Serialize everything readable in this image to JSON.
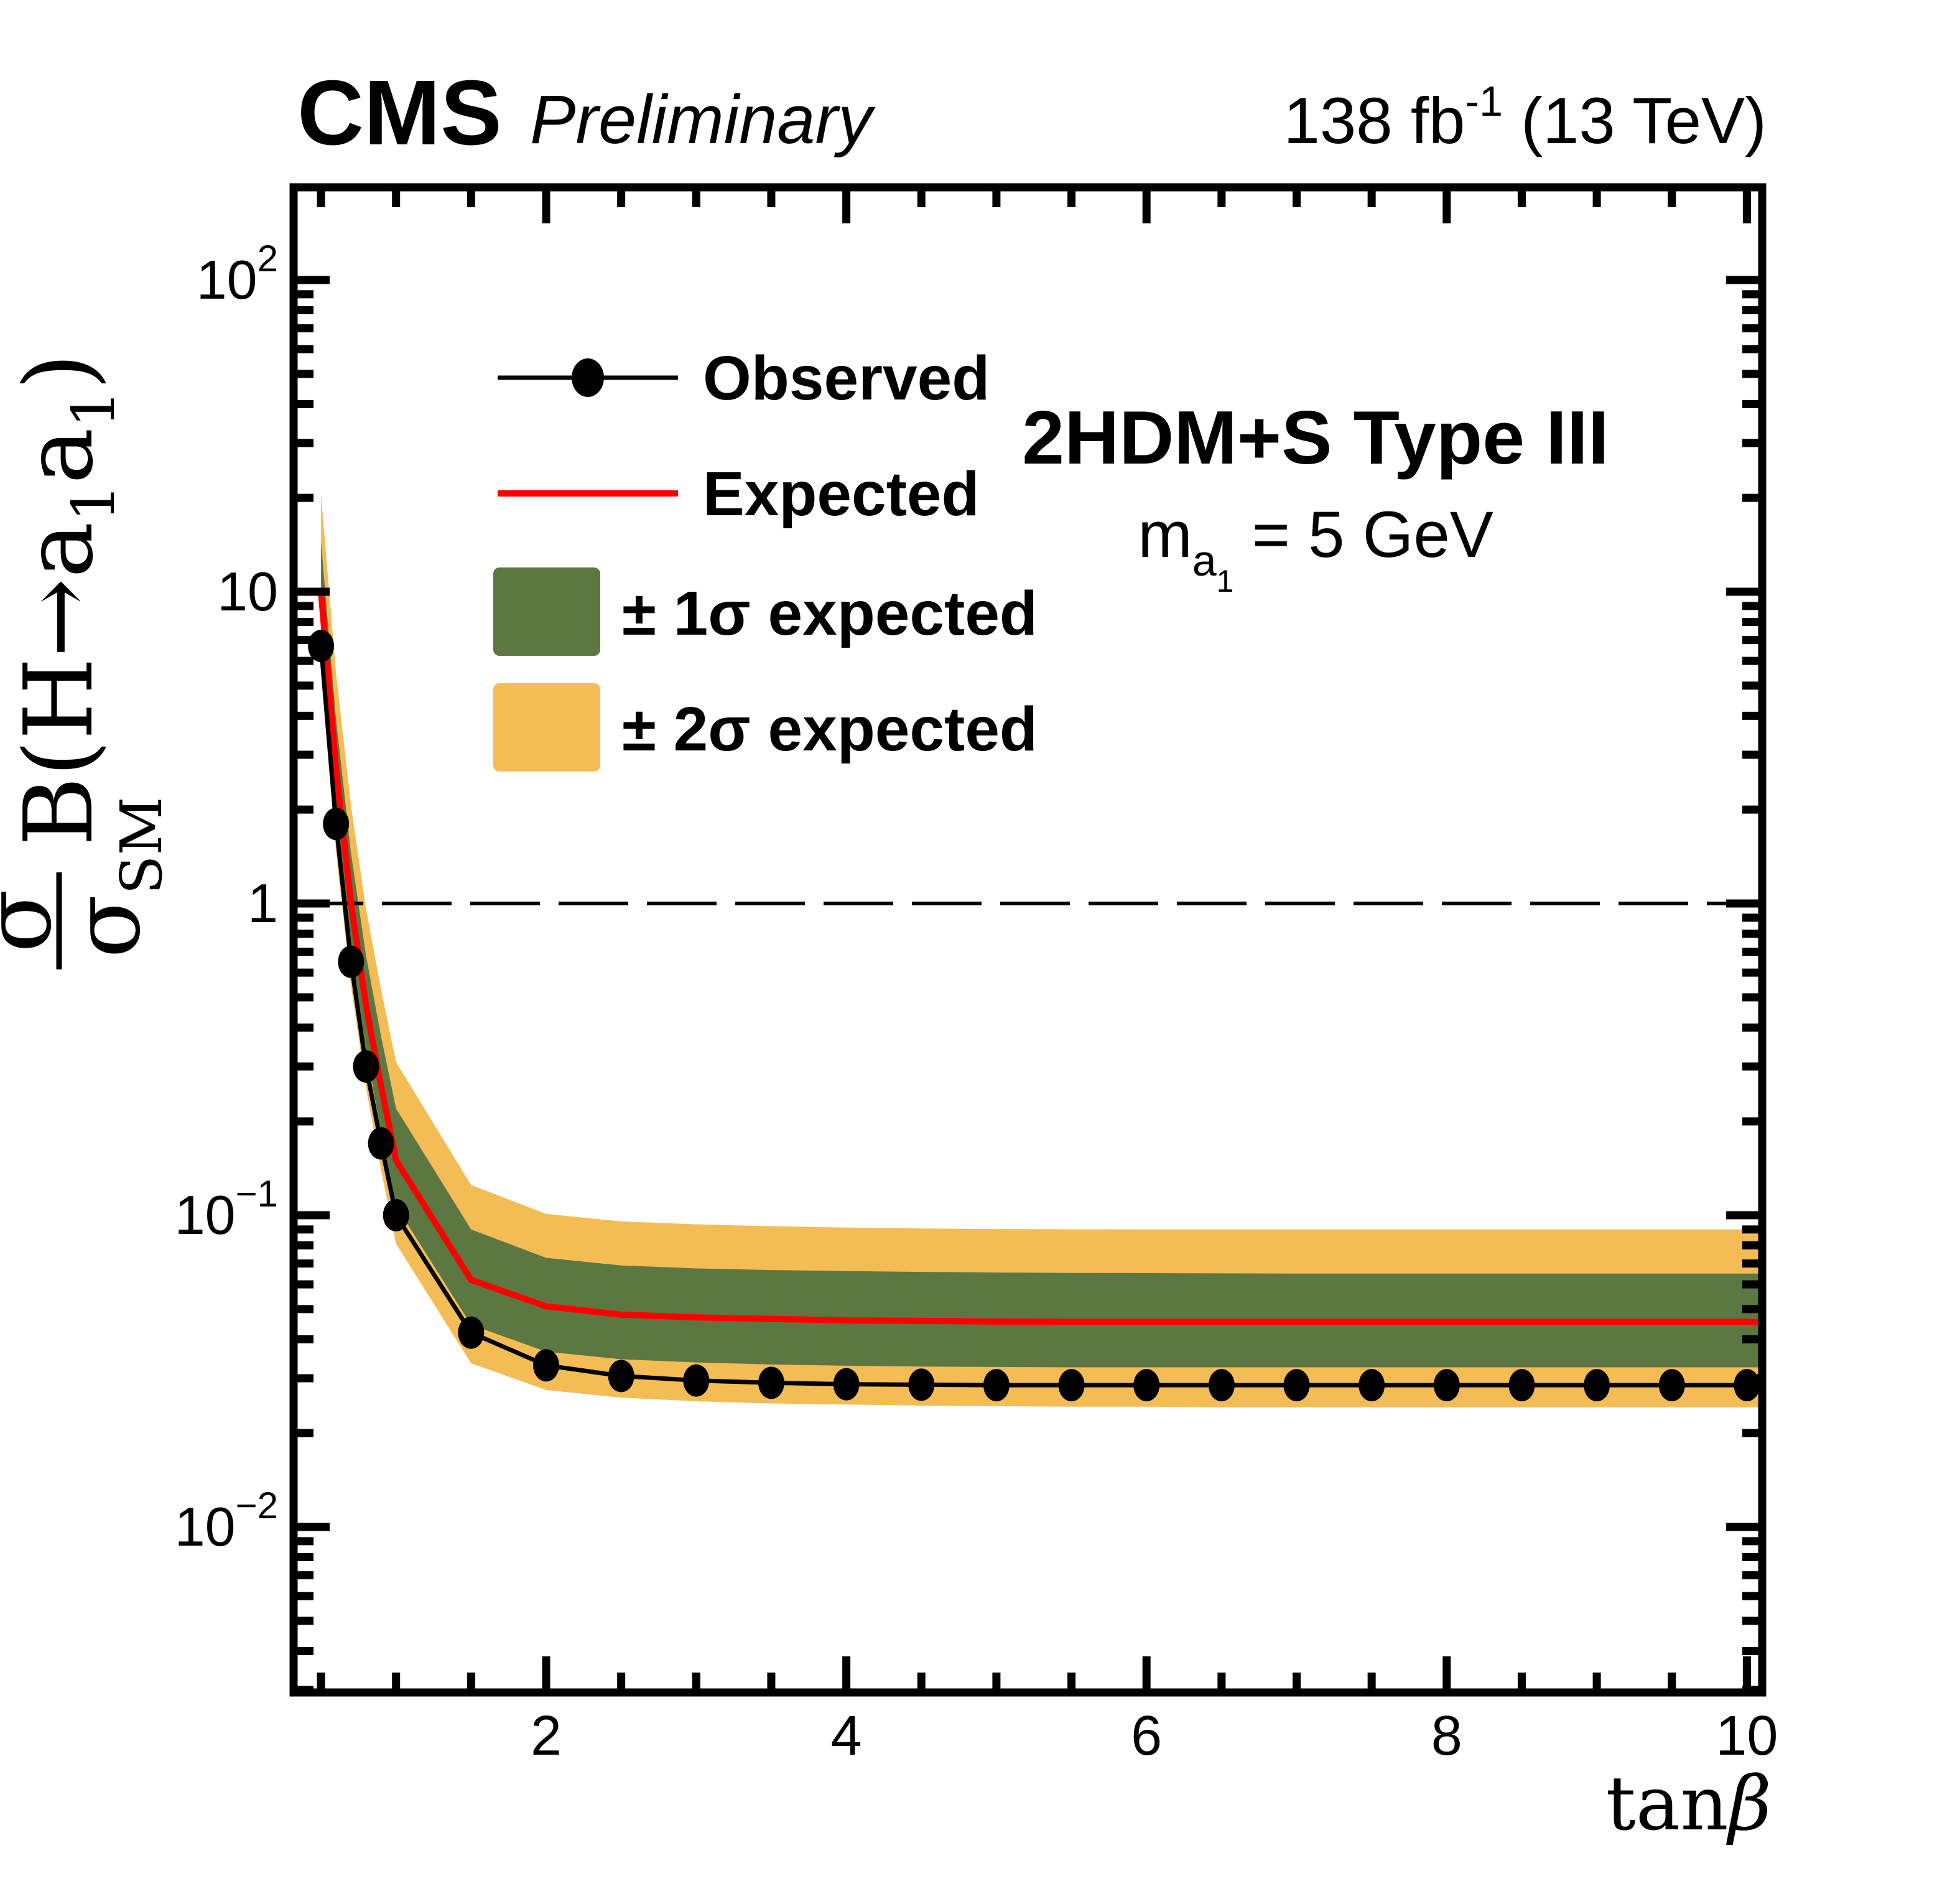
{
  "header": {
    "experiment": "CMS",
    "status": "Preliminary",
    "lumi_main": "138 fb",
    "lumi_sup": "-1",
    "lumi_rest": " (13 TeV)"
  },
  "legend": {
    "observed": "Observed",
    "expected": "Expected",
    "band1": "± 1σ expected",
    "band2": "± 2σ expected"
  },
  "annotation": {
    "model": "2HDM+S Type III",
    "mass_m": "m",
    "mass_sub": "a",
    "mass_subsub": "1",
    "mass_rest": " = 5 GeV"
  },
  "y_axis_title": {
    "num": "σ",
    "den": "σ",
    "den_sub": "SM",
    "body1": "B(H",
    "arrow": "→",
    "a1": "a",
    "s1": "1",
    "a2": "a",
    "s2": "1",
    "close": ")"
  },
  "x_axis_title": {
    "tan": "tan",
    "beta": "β"
  },
  "chart_data": {
    "type": "line",
    "title": "Upper limits on signal strength vs tanβ, 2HDM+S Type III, m_a1 = 5 GeV",
    "xlabel": "tanβ",
    "ylabel": "σ/σ_SM B(H→a1a1)",
    "xlim": [
      0.32,
      10.1
    ],
    "ylim": [
      0.0029,
      198
    ],
    "yscale": "log",
    "grid": false,
    "legend_position": "upper-left-inside",
    "unity_line": 1,
    "x_ticks": [
      "2",
      "4",
      "6",
      "8",
      "10"
    ],
    "x_tick_values": [
      2,
      4,
      6,
      8,
      10
    ],
    "x_minor_step": 0.5,
    "y_ticks": [
      {
        "v": 100,
        "base": "10",
        "exp": "2"
      },
      {
        "v": 10,
        "base": "10",
        "exp": ""
      },
      {
        "v": 1,
        "base": "1",
        "exp": ""
      },
      {
        "v": 0.1,
        "base": "10",
        "exp": "−1"
      },
      {
        "v": 0.01,
        "base": "10",
        "exp": "−2"
      }
    ],
    "x": [
      0.5,
      0.6,
      0.7,
      0.8,
      0.9,
      1.0,
      1.5,
      2.0,
      2.5,
      3.0,
      3.5,
      4.0,
      4.5,
      5.0,
      5.5,
      6.0,
      6.5,
      7.0,
      7.5,
      8.0,
      8.5,
      9.0,
      9.5,
      10.0
    ],
    "series": [
      {
        "name": "Observed",
        "style": "black line, filled circle markers",
        "values": [
          6.7,
          1.8,
          0.65,
          0.3,
          0.17,
          0.1,
          0.042,
          0.033,
          0.0305,
          0.0295,
          0.029,
          0.0287,
          0.0286,
          0.0285,
          0.0285,
          0.0285,
          0.0285,
          0.0285,
          0.0285,
          0.0285,
          0.0285,
          0.0285,
          0.0285,
          0.0285
        ]
      },
      {
        "name": "Expected",
        "style": "red line",
        "values": [
          10.0,
          2.7,
          1.0,
          0.47,
          0.26,
          0.15,
          0.062,
          0.051,
          0.048,
          0.047,
          0.0465,
          0.046,
          0.0458,
          0.0456,
          0.0455,
          0.0455,
          0.0455,
          0.0455,
          0.0455,
          0.0455,
          0.0455,
          0.0455,
          0.0455,
          0.0455
        ]
      },
      {
        "name": "+1σ expected (upper)",
        "style": "green band upper edge",
        "values": [
          14.5,
          3.9,
          1.45,
          0.68,
          0.375,
          0.22,
          0.09,
          0.073,
          0.069,
          0.0675,
          0.0667,
          0.0662,
          0.0658,
          0.0655,
          0.0653,
          0.0652,
          0.0651,
          0.065,
          0.065,
          0.065,
          0.065,
          0.065,
          0.065,
          0.065
        ]
      },
      {
        "name": "-1σ expected (lower)",
        "style": "green band lower edge",
        "values": [
          7.3,
          1.95,
          0.72,
          0.34,
          0.185,
          0.107,
          0.0445,
          0.0365,
          0.0345,
          0.0337,
          0.0332,
          0.0329,
          0.0327,
          0.0326,
          0.0325,
          0.0325,
          0.0325,
          0.0325,
          0.0325,
          0.0325,
          0.0325,
          0.0325,
          0.0325,
          0.0325
        ]
      },
      {
        "name": "+2σ expected (upper)",
        "style": "yellow band upper edge",
        "values": [
          20.5,
          5.5,
          2.05,
          0.96,
          0.53,
          0.31,
          0.125,
          0.101,
          0.0955,
          0.0935,
          0.0922,
          0.0913,
          0.0907,
          0.0903,
          0.0901,
          0.09,
          0.09,
          0.09,
          0.09,
          0.09,
          0.09,
          0.09,
          0.09,
          0.09
        ]
      },
      {
        "name": "-2σ expected (lower)",
        "style": "yellow band lower edge",
        "values": [
          5.5,
          1.47,
          0.545,
          0.257,
          0.14,
          0.081,
          0.0335,
          0.0275,
          0.026,
          0.0253,
          0.0249,
          0.0247,
          0.0245,
          0.0244,
          0.0243,
          0.0243,
          0.0242,
          0.0242,
          0.0242,
          0.0242,
          0.0242,
          0.0242,
          0.0242,
          0.0242
        ]
      }
    ],
    "colors": {
      "observed": "#000000",
      "expected": "#ff0000",
      "band1": "#5d7742",
      "band2": "#f4bc55",
      "frame": "#000000"
    }
  }
}
